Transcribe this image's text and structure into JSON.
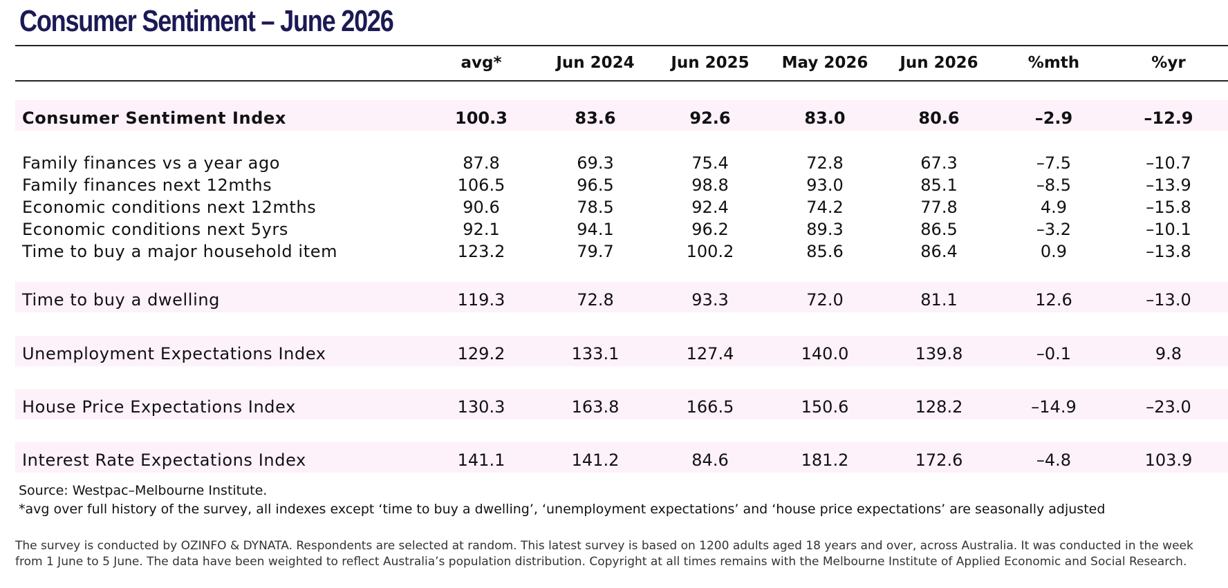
{
  "title": "Consumer Sentiment – June 2026",
  "columns": [
    "avg*",
    "Jun 2024",
    "Jun 2025",
    "May 2026",
    "Jun 2026",
    "%mth",
    "%yr"
  ],
  "rows": [
    {
      "label": "Consumer Sentiment Index",
      "values": [
        "100.3",
        "83.6",
        "92.6",
        "83.0",
        "80.6",
        "–2.9",
        "–12.9"
      ]
    },
    {
      "label": "Family finances vs a year ago",
      "values": [
        "87.8",
        "69.3",
        "75.4",
        "72.8",
        "67.3",
        "–7.5",
        "–10.7"
      ]
    },
    {
      "label": "Family finances next 12mths",
      "values": [
        "106.5",
        "96.5",
        "98.8",
        "93.0",
        "85.1",
        "–8.5",
        "–13.9"
      ]
    },
    {
      "label": "Economic conditions next 12mths",
      "values": [
        "90.6",
        "78.5",
        "92.4",
        "74.2",
        "77.8",
        "4.9",
        "–15.8"
      ]
    },
    {
      "label": "Economic conditions next 5yrs",
      "values": [
        "92.1",
        "94.1",
        "96.2",
        "89.3",
        "86.5",
        "–3.2",
        "–10.1"
      ]
    },
    {
      "label": "Time to buy a major household item",
      "values": [
        "123.2",
        "79.7",
        "100.2",
        "85.6",
        "86.4",
        "0.9",
        "–13.8"
      ]
    },
    {
      "label": "Time to buy a dwelling",
      "values": [
        "119.3",
        "72.8",
        "93.3",
        "72.0",
        "81.1",
        "12.6",
        "–13.0"
      ]
    },
    {
      "label": "Unemployment Expectations Index",
      "values": [
        "129.2",
        "133.1",
        "127.4",
        "140.0",
        "139.8",
        "–0.1",
        "9.8"
      ]
    },
    {
      "label": "House Price Expectations Index",
      "values": [
        "130.3",
        "163.8",
        "166.5",
        "150.6",
        "128.2",
        "–14.9",
        "–23.0"
      ]
    },
    {
      "label": "Interest Rate Expectations Index",
      "values": [
        "141.1",
        "141.2",
        "84.6",
        "181.2",
        "172.6",
        "–4.8",
        "103.9"
      ]
    }
  ],
  "notes": {
    "source": "Source: Westpac–Melbourne Institute.",
    "avg_note": "*avg over full history of the survey, all indexes except ‘time to buy a dwelling’, ‘unemployment expectations’ and ‘house price expectations’ are seasonally adjusted"
  },
  "footer": {
    "line1": "The survey is conducted by OZINFO & DYNATA. Respondents are selected at random. This latest survey is based on 1200 adults aged 18 years and over, across Australia. It was conducted in the week",
    "line2": "from 1 June to 5 June. The data have been weighted to reflect Australia’s population distribution. Copyright at all times remains with the Melbourne Institute of Applied Economic and Social Research."
  },
  "colors": {
    "title": "#1b1a55",
    "band": "#fdf1fa"
  }
}
